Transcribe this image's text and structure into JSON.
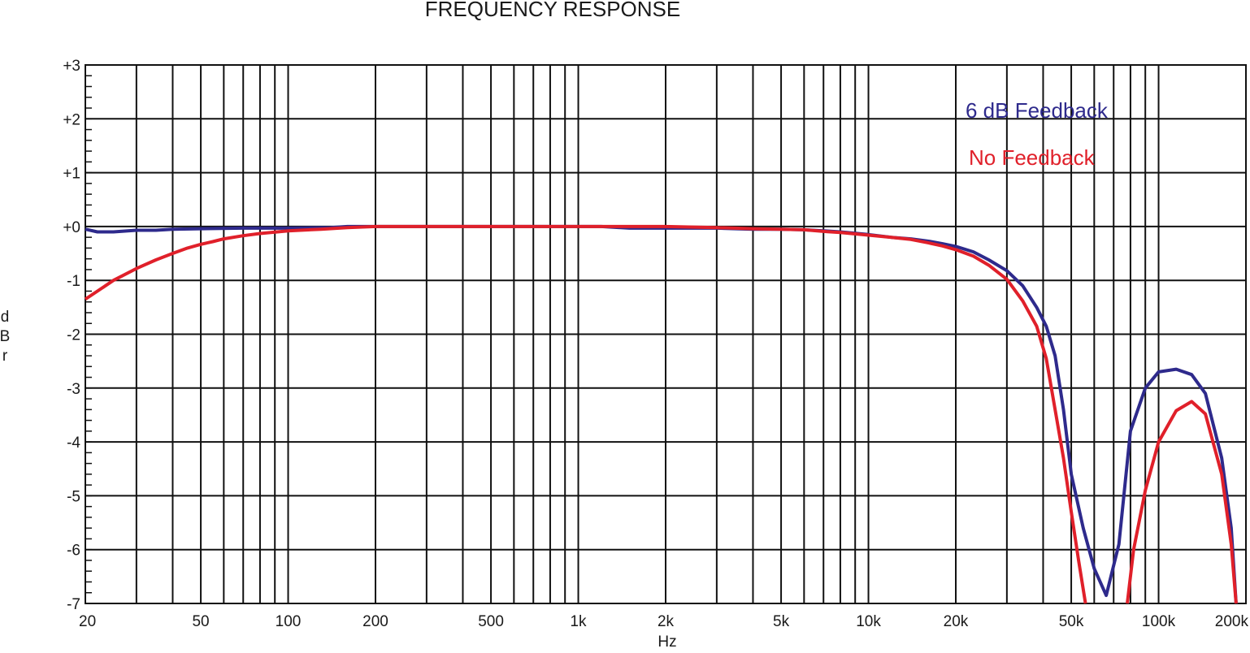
{
  "chart_data": {
    "type": "line",
    "title": "FREQUENCY RESPONSE",
    "xlabel": "Hz",
    "ylabel": "dBr",
    "x_scale": "log",
    "xlim": [
      20,
      200000
    ],
    "ylim": [
      -7,
      3
    ],
    "grid": true,
    "legend_position": "top-right",
    "x_ticks": [
      {
        "value": 20,
        "label": "20"
      },
      {
        "value": 50,
        "label": "50"
      },
      {
        "value": 100,
        "label": "100"
      },
      {
        "value": 200,
        "label": "200"
      },
      {
        "value": 500,
        "label": "500"
      },
      {
        "value": 1000,
        "label": "1k"
      },
      {
        "value": 2000,
        "label": "2k"
      },
      {
        "value": 5000,
        "label": "5k"
      },
      {
        "value": 10000,
        "label": "10k"
      },
      {
        "value": 20000,
        "label": "20k"
      },
      {
        "value": 50000,
        "label": "50k"
      },
      {
        "value": 100000,
        "label": "100k"
      },
      {
        "value": 200000,
        "label": "200k"
      }
    ],
    "y_ticks": [
      {
        "value": 3,
        "label": "+3"
      },
      {
        "value": 2,
        "label": "+2"
      },
      {
        "value": 1,
        "label": "+1"
      },
      {
        "value": 0,
        "label": "+0"
      },
      {
        "value": -1,
        "label": "-1"
      },
      {
        "value": -2,
        "label": "-2"
      },
      {
        "value": -3,
        "label": "-3"
      },
      {
        "value": -4,
        "label": "-4"
      },
      {
        "value": -5,
        "label": "-5"
      },
      {
        "value": -6,
        "label": "-6"
      },
      {
        "value": -7,
        "label": "-7"
      }
    ],
    "series": [
      {
        "name": "6 dB Feedback",
        "color": "#2e2a8c",
        "points": [
          [
            20,
            -0.05
          ],
          [
            22,
            -0.1
          ],
          [
            25,
            -0.1
          ],
          [
            30,
            -0.07
          ],
          [
            35,
            -0.07
          ],
          [
            40,
            -0.05
          ],
          [
            50,
            -0.04
          ],
          [
            70,
            -0.03
          ],
          [
            100,
            -0.03
          ],
          [
            140,
            -0.02
          ],
          [
            160,
            0.0
          ],
          [
            200,
            0.0
          ],
          [
            300,
            0.0
          ],
          [
            500,
            0.0
          ],
          [
            1000,
            0.0
          ],
          [
            1200,
            0.0
          ],
          [
            1500,
            -0.03
          ],
          [
            2000,
            -0.03
          ],
          [
            3000,
            -0.03
          ],
          [
            4000,
            -0.05
          ],
          [
            5000,
            -0.05
          ],
          [
            6000,
            -0.06
          ],
          [
            7000,
            -0.08
          ],
          [
            8000,
            -0.1
          ],
          [
            10000,
            -0.15
          ],
          [
            12000,
            -0.2
          ],
          [
            14000,
            -0.23
          ],
          [
            16000,
            -0.27
          ],
          [
            18000,
            -0.32
          ],
          [
            20000,
            -0.37
          ],
          [
            23000,
            -0.47
          ],
          [
            26000,
            -0.62
          ],
          [
            30000,
            -0.82
          ],
          [
            34000,
            -1.1
          ],
          [
            38000,
            -1.5
          ],
          [
            41000,
            -1.85
          ],
          [
            44000,
            -2.4
          ],
          [
            47000,
            -3.4
          ],
          [
            50000,
            -4.6
          ],
          [
            55000,
            -5.6
          ],
          [
            60000,
            -6.35
          ],
          [
            66000,
            -6.85
          ],
          [
            73000,
            -5.9
          ],
          [
            80000,
            -3.8
          ],
          [
            90000,
            -3.0
          ],
          [
            100000,
            -2.7
          ],
          [
            115000,
            -2.65
          ],
          [
            130000,
            -2.75
          ],
          [
            145000,
            -3.1
          ],
          [
            165000,
            -4.3
          ],
          [
            178000,
            -5.6
          ],
          [
            185000,
            -7.0
          ]
        ]
      },
      {
        "name": "No Feedback",
        "color": "#e0202a",
        "points": [
          [
            20,
            -1.35
          ],
          [
            22,
            -1.2
          ],
          [
            25,
            -1.0
          ],
          [
            30,
            -0.78
          ],
          [
            35,
            -0.62
          ],
          [
            40,
            -0.5
          ],
          [
            45,
            -0.4
          ],
          [
            50,
            -0.33
          ],
          [
            55,
            -0.28
          ],
          [
            60,
            -0.23
          ],
          [
            70,
            -0.17
          ],
          [
            80,
            -0.13
          ],
          [
            100,
            -0.08
          ],
          [
            130,
            -0.05
          ],
          [
            160,
            -0.02
          ],
          [
            200,
            0.0
          ],
          [
            300,
            0.0
          ],
          [
            500,
            0.0
          ],
          [
            1000,
            0.0
          ],
          [
            2000,
            0.0
          ],
          [
            3000,
            -0.02
          ],
          [
            4000,
            -0.04
          ],
          [
            5000,
            -0.05
          ],
          [
            6000,
            -0.06
          ],
          [
            7000,
            -0.09
          ],
          [
            8000,
            -0.11
          ],
          [
            10000,
            -0.16
          ],
          [
            12000,
            -0.2
          ],
          [
            14000,
            -0.24
          ],
          [
            16000,
            -0.3
          ],
          [
            18000,
            -0.36
          ],
          [
            20000,
            -0.43
          ],
          [
            23000,
            -0.55
          ],
          [
            26000,
            -0.72
          ],
          [
            30000,
            -0.98
          ],
          [
            34000,
            -1.38
          ],
          [
            38000,
            -1.85
          ],
          [
            41000,
            -2.45
          ],
          [
            44000,
            -3.4
          ],
          [
            47000,
            -4.3
          ],
          [
            50000,
            -5.3
          ],
          [
            53000,
            -6.2
          ],
          [
            56000,
            -7.0
          ],
          null,
          [
            78000,
            -7.0
          ],
          [
            82000,
            -6.0
          ],
          [
            90000,
            -4.9
          ],
          [
            100000,
            -4.0
          ],
          [
            115000,
            -3.42
          ],
          [
            130000,
            -3.25
          ],
          [
            145000,
            -3.48
          ],
          [
            165000,
            -4.6
          ],
          [
            178000,
            -5.9
          ],
          [
            185000,
            -7.0
          ]
        ]
      }
    ]
  }
}
